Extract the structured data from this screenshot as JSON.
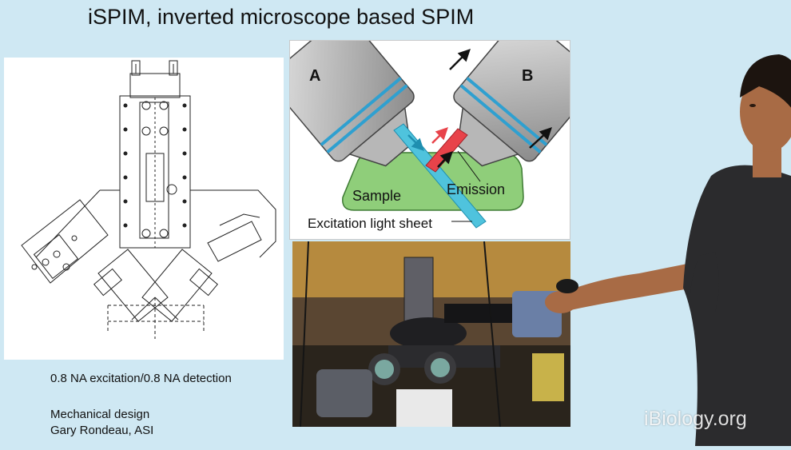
{
  "slide": {
    "title": "iSPIM, inverted microscope based SPIM"
  },
  "schematic": {
    "label_a": "A",
    "label_b": "B",
    "label_sample": "Sample",
    "label_emission": "Emission",
    "label_excitation": "Excitation light sheet"
  },
  "captions": {
    "na_line": "0.8 NA excitation/0.8 NA detection",
    "design_line1": "Mechanical design",
    "design_line2": "Gary Rondeau, ASI"
  },
  "watermark": {
    "text": "iBiology.org"
  },
  "colors": {
    "background": "#cfe8f3",
    "sample_green": "#8fce7a",
    "emission_red": "#e8434a",
    "excitation_cyan": "#4fc3dd",
    "objective_blue": "#2fa0d0"
  }
}
